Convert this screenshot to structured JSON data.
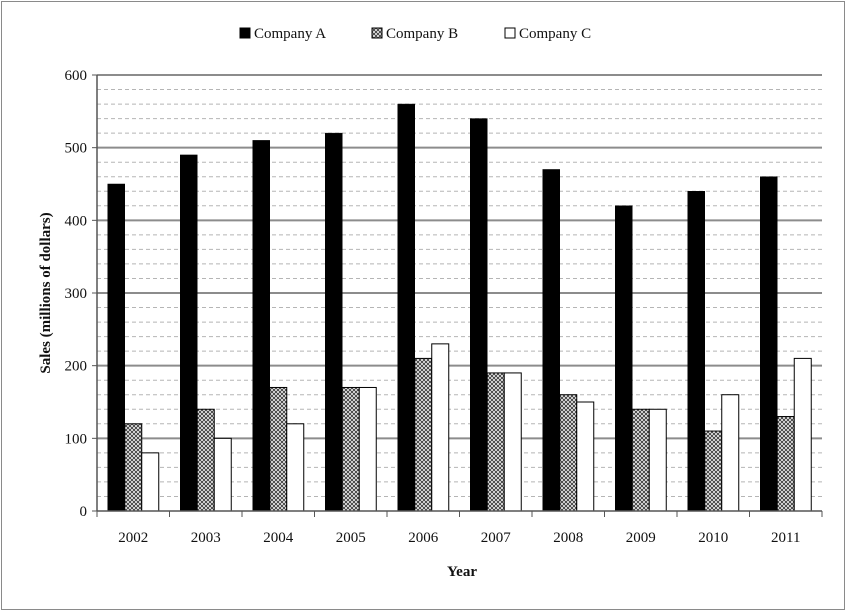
{
  "chart_data": {
    "type": "bar",
    "title": "",
    "xlabel": "Year",
    "ylabel": "Sales (millions of dollars)",
    "ylim": [
      0,
      600
    ],
    "yticks": [
      0,
      100,
      200,
      300,
      400,
      500,
      600
    ],
    "grid": "major solid every 100, minor dashed every 20",
    "legend_position": "top",
    "categories": [
      "2002",
      "2003",
      "2004",
      "2005",
      "2006",
      "2007",
      "2008",
      "2009",
      "2010",
      "2011"
    ],
    "series": [
      {
        "name": "Company A",
        "fill": "solid black",
        "values": [
          450,
          490,
          510,
          520,
          560,
          540,
          470,
          420,
          440,
          460
        ]
      },
      {
        "name": "Company B",
        "fill": "crosshatch",
        "values": [
          120,
          140,
          170,
          170,
          210,
          190,
          160,
          140,
          110,
          130
        ]
      },
      {
        "name": "Company C",
        "fill": "white",
        "values": [
          80,
          100,
          120,
          170,
          230,
          190,
          150,
          140,
          160,
          210
        ]
      }
    ],
    "colors": {
      "company_a": "#000000",
      "company_b_pattern": "#555555",
      "company_c": "#ffffff",
      "major_grid": "#8c8c8c",
      "minor_grid": "#b5b5b5"
    }
  }
}
